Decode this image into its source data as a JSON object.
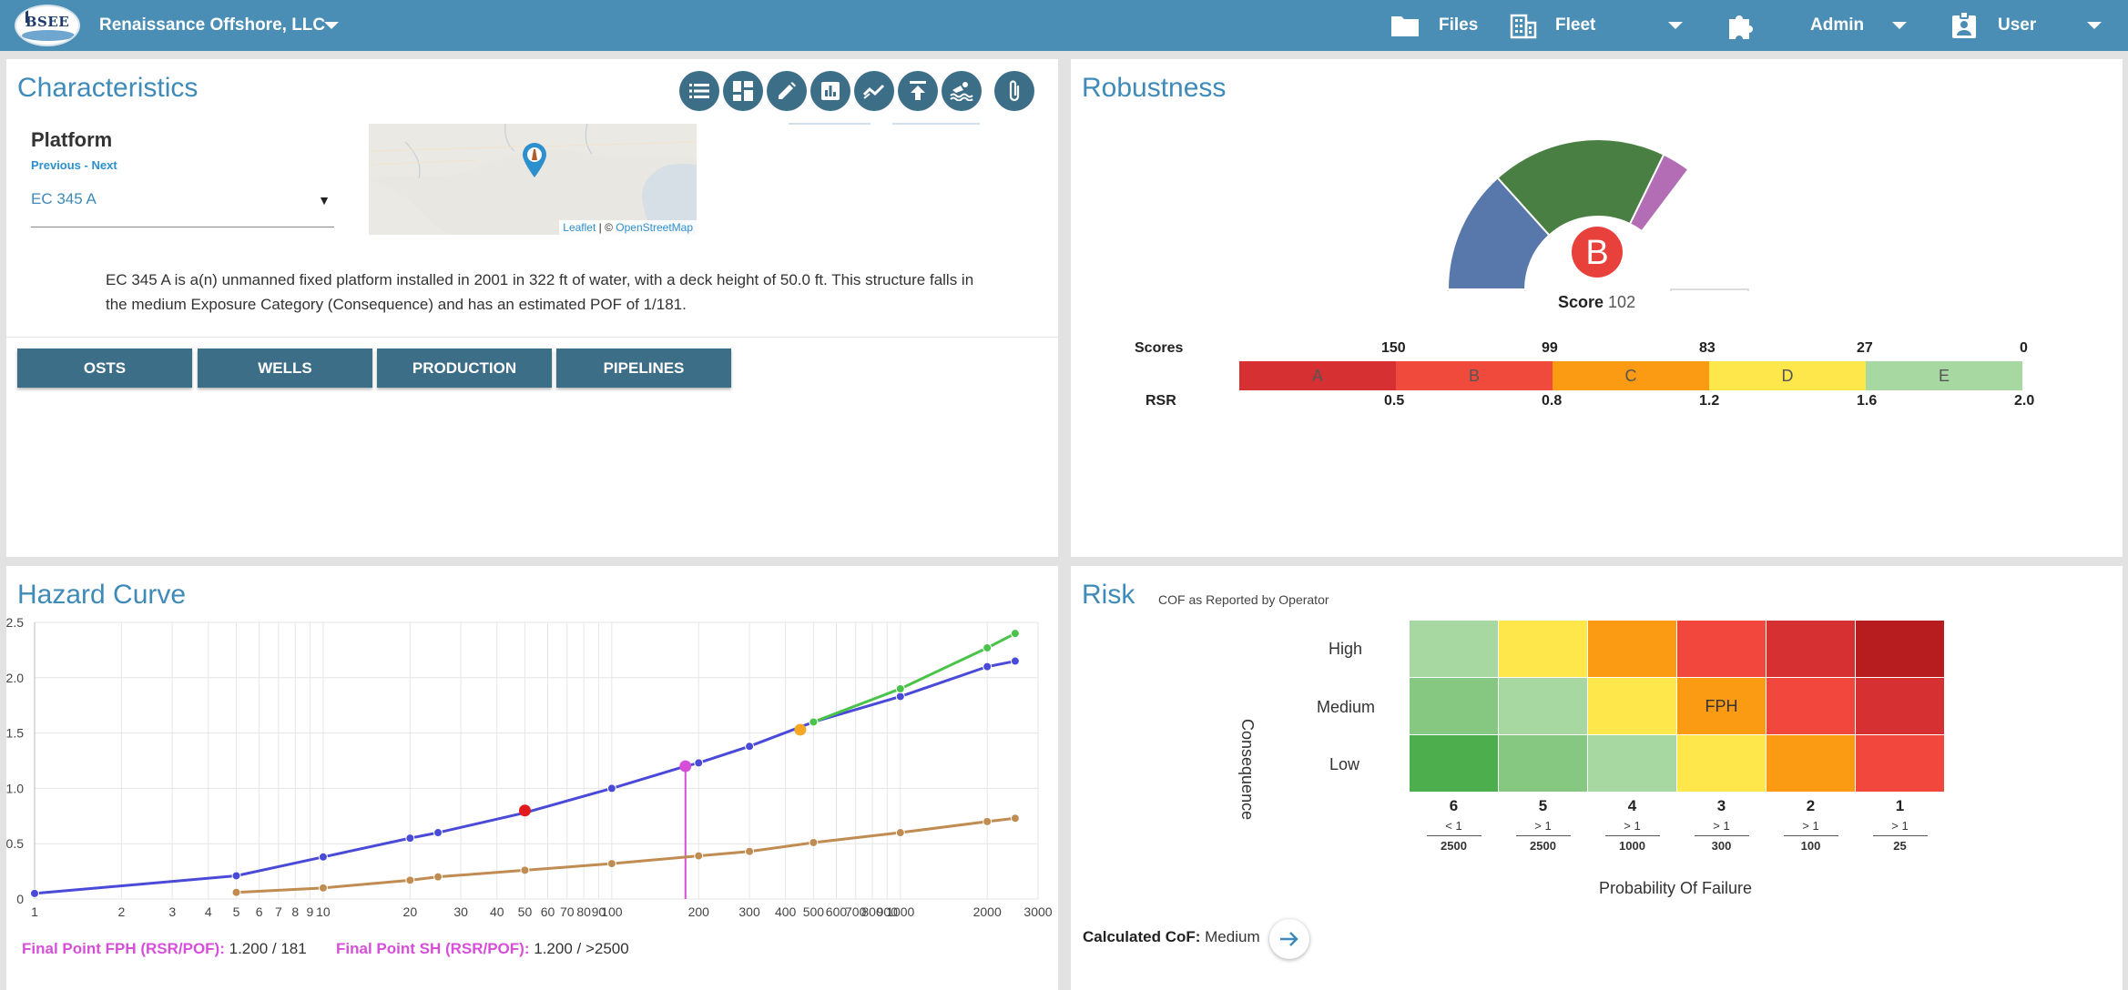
{
  "header": {
    "company": "Renaissance Offshore, LLC",
    "logo_text": "BSEE",
    "files": "Files",
    "fleet": "Fleet",
    "admin": "Admin",
    "user": "User"
  },
  "characteristics": {
    "title": "Characteristics",
    "platform_label": "Platform",
    "previous": "Previous",
    "separator": " - ",
    "next": "Next",
    "selected_platform": "EC 345 A",
    "map_attribution_leaflet": "Leaflet",
    "map_attribution_sep": " | © ",
    "map_attribution_osm": "OpenStreetMap",
    "description": "EC 345 A is a(n) unmanned fixed platform installed in 2001 in 322 ft of water, with a deck height of 50.0 ft. This structure falls in the medium Exposure Category (Consequence) and has an estimated POF of 1/181.",
    "toolbar_icons": [
      "list-icon",
      "dashboard-icon",
      "edit-icon",
      "bar-chart-icon",
      "trending-icon",
      "upload-icon",
      "water-icon",
      "attachment-icon"
    ],
    "tabs": [
      "OSTS",
      "WELLS",
      "PRODUCTION",
      "PIPELINES"
    ]
  },
  "robustness": {
    "title": "Robustness",
    "grade": "B",
    "score_label": "Score",
    "score_value": "102",
    "scores_label": "Scores",
    "rsr_label": "RSR",
    "score_ticks": [
      "150",
      "99",
      "83",
      "27",
      "0"
    ],
    "rsr_ticks": [
      "0.5",
      "0.8",
      "1.2",
      "1.6",
      "2.0"
    ],
    "bands": [
      {
        "label": "A",
        "color": "#d63032"
      },
      {
        "label": "B",
        "color": "#f04a3c"
      },
      {
        "label": "C",
        "color": "#fb9a13"
      },
      {
        "label": "D",
        "color": "#fde74b"
      },
      {
        "label": "E",
        "color": "#a7d8a2"
      }
    ],
    "gauge_colors": [
      "#5878ab",
      "#4a7f43",
      "#b36db5"
    ]
  },
  "hazard": {
    "title": "Hazard Curve",
    "final_fph_label": "Final Point FPH (RSR/POF):",
    "final_fph_value": "1.200 / 181",
    "final_sh_label": "Final Point SH (RSR/POF):",
    "final_sh_value": "1.200 / >2500"
  },
  "chart_data": {
    "type": "line",
    "x_scale": "log",
    "xlim": [
      1,
      3000
    ],
    "ylim": [
      0,
      2.5
    ],
    "grid": true,
    "y_ticks": [
      "0",
      "0.5",
      "1.0",
      "1.5",
      "2.0",
      "2.5"
    ],
    "x_ticks": [
      {
        "v": 1,
        "t": "1"
      },
      {
        "v": 2,
        "t": "2"
      },
      {
        "v": 3,
        "t": "3"
      },
      {
        "v": 4,
        "t": "4"
      },
      {
        "v": 5,
        "t": "5"
      },
      {
        "v": 6,
        "t": "6"
      },
      {
        "v": 7,
        "t": "7"
      },
      {
        "v": 8,
        "t": "8"
      },
      {
        "v": 9,
        "t": "9"
      },
      {
        "v": 10,
        "t": "10"
      },
      {
        "v": 20,
        "t": "20"
      },
      {
        "v": 30,
        "t": "30"
      },
      {
        "v": 40,
        "t": "40"
      },
      {
        "v": 50,
        "t": "50"
      },
      {
        "v": 60,
        "t": "60"
      },
      {
        "v": 70,
        "t": "70"
      },
      {
        "v": 80,
        "t": "80"
      },
      {
        "v": 90,
        "t": "90"
      },
      {
        "v": 100,
        "t": "100"
      },
      {
        "v": 200,
        "t": "200"
      },
      {
        "v": 300,
        "t": "300"
      },
      {
        "v": 400,
        "t": "400"
      },
      {
        "v": 500,
        "t": "500"
      },
      {
        "v": 600,
        "t": "600"
      },
      {
        "v": 700,
        "t": "700"
      },
      {
        "v": 800,
        "t": "800"
      },
      {
        "v": 900,
        "t": "900"
      },
      {
        "v": 1000,
        "t": "1000"
      },
      {
        "v": 2000,
        "t": "2000"
      },
      {
        "v": 3000,
        "t": "3000"
      }
    ],
    "series": [
      {
        "color": "#4a4ad8",
        "x": [
          1,
          5,
          10,
          20,
          25,
          50,
          100,
          180,
          200,
          300,
          500,
          1000,
          2000,
          2500
        ],
        "y": [
          0.05,
          0.21,
          0.38,
          0.55,
          0.6,
          0.78,
          1.0,
          1.2,
          1.23,
          1.38,
          1.6,
          1.83,
          2.1,
          2.15
        ]
      },
      {
        "color": "#c18c52",
        "x": [
          5,
          10,
          20,
          25,
          50,
          100,
          200,
          300,
          500,
          1000,
          2000,
          2500
        ],
        "y": [
          0.06,
          0.1,
          0.17,
          0.2,
          0.26,
          0.32,
          0.39,
          0.43,
          0.51,
          0.6,
          0.7,
          0.73
        ]
      },
      {
        "color": "#4ac34a",
        "x": [
          500,
          1000,
          2000,
          2500
        ],
        "y": [
          1.6,
          1.9,
          2.27,
          2.4
        ]
      }
    ],
    "markers": [
      {
        "color": "#e31a1c",
        "x": 50,
        "y": 0.8
      },
      {
        "color": "#d64fd9",
        "x": 180,
        "y": 1.2
      },
      {
        "color": "#f5a623",
        "x": 450,
        "y": 1.53
      }
    ],
    "vline": {
      "color": "#d64fd9",
      "x": 180,
      "y": 1.2
    }
  },
  "risk": {
    "title": "Risk",
    "subtitle": "COF as Reported by Operator",
    "consequence_label": "Consequence",
    "pof_label": "Probability Of Failure",
    "rows": [
      "High",
      "Medium",
      "Low"
    ],
    "matrix_colors": [
      [
        "#a7d8a2",
        "#fde74b",
        "#fb9a13",
        "#f2473d",
        "#d63032",
        "#b71d1e"
      ],
      [
        "#86c882",
        "#a7d8a2",
        "#fde74b",
        "#fb9a13",
        "#f2473d",
        "#d63032"
      ],
      [
        "#4cae4c",
        "#86c882",
        "#a7d8a2",
        "#fde74b",
        "#fb9a13",
        "#f2473d"
      ]
    ],
    "matrix_labels": [
      [
        "",
        "",
        "",
        "",
        "",
        ""
      ],
      [
        "",
        "",
        "",
        "FPH",
        "",
        ""
      ],
      [
        "",
        "",
        "",
        "",
        "",
        ""
      ]
    ],
    "columns": [
      {
        "num": "6",
        "top": "< 1",
        "bottom": "2500"
      },
      {
        "num": "5",
        "top": "> 1",
        "bottom": "2500"
      },
      {
        "num": "4",
        "top": "> 1",
        "bottom": "1000"
      },
      {
        "num": "3",
        "top": "> 1",
        "bottom": "300"
      },
      {
        "num": "2",
        "top": "> 1",
        "bottom": "100"
      },
      {
        "num": "1",
        "top": "> 1",
        "bottom": "25"
      }
    ],
    "calculated_label": "Calculated CoF:",
    "calculated_value": "Medium"
  }
}
